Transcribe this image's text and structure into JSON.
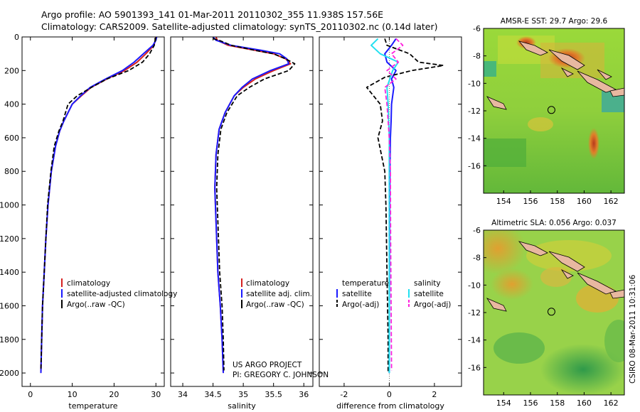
{
  "header": {
    "line1": "Argo profile: AO 5901393_141 01-Mar-2011 20110302_355 11.938S 157.56E",
    "line2": "Climatology: CARS2009. Satellite-adjusted climatology: synTS_20110302.nc (0.14d later)"
  },
  "side_stamp": "CSIRO 08-Mar-2011 10:31:06",
  "project": {
    "line1": "US ARGO PROJECT",
    "line2": "PI: GREGORY C. JOHNSON"
  },
  "colors": {
    "climatology": "#d62020",
    "satellite": "#1a1aff",
    "argo": "#000000",
    "salinity_sat": "#22e0f0",
    "salinity_argo": "#ff22dd"
  },
  "chart_data": [
    {
      "id": "temperature",
      "type": "line",
      "xlabel": "temperature",
      "ylabel": "",
      "xlim": [
        -2,
        32
      ],
      "ylim": [
        2080,
        0
      ],
      "xticks": [
        0,
        10,
        20,
        30
      ],
      "yticks": [
        0,
        200,
        400,
        600,
        800,
        1000,
        1200,
        1400,
        1600,
        1800,
        2000
      ],
      "legend": [
        "climatology",
        "satellite-adjusted climatology",
        "Argo(..raw -QC)"
      ],
      "series": [
        {
          "name": "climatology",
          "style": "solid",
          "color": "#d62020",
          "x": [
            30.0,
            29.9,
            29.5,
            27.6,
            25.5,
            22.5,
            18.3,
            14.5,
            12.2,
            10.0,
            8.0,
            7.0,
            6.0,
            5.0,
            4.2,
            3.7,
            3.3,
            2.9,
            2.7,
            2.5
          ],
          "y": [
            0,
            20,
            50,
            100,
            150,
            200,
            250,
            300,
            350,
            400,
            500,
            560,
            650,
            800,
            1000,
            1200,
            1400,
            1600,
            1800,
            2000
          ]
        },
        {
          "name": "satellite-adjusted climatology",
          "style": "solid",
          "color": "#1a1aff",
          "x": [
            30.2,
            30.0,
            29.3,
            27.0,
            24.8,
            22.0,
            18.0,
            14.3,
            12.0,
            10.0,
            8.0,
            7.0,
            6.0,
            5.0,
            4.2,
            3.7,
            3.3,
            2.9,
            2.7,
            2.5
          ],
          "y": [
            0,
            20,
            50,
            100,
            150,
            200,
            250,
            300,
            350,
            400,
            500,
            560,
            650,
            800,
            1000,
            1200,
            1400,
            1600,
            1800,
            2000
          ]
        },
        {
          "name": "Argo(..raw -QC)",
          "style": "dashed",
          "color": "#000000",
          "x": [
            29.8,
            29.8,
            29.6,
            28.5,
            26.8,
            23.5,
            18.3,
            14.6,
            11.2,
            9.0,
            7.8,
            6.8,
            5.7,
            4.9,
            4.1,
            3.7,
            3.3,
            2.9,
            2.7,
            2.5
          ],
          "y": [
            5,
            20,
            50,
            100,
            150,
            200,
            250,
            300,
            350,
            400,
            500,
            560,
            650,
            800,
            1000,
            1200,
            1400,
            1600,
            1800,
            1985
          ]
        }
      ]
    },
    {
      "id": "salinity",
      "type": "line",
      "xlabel": "salinity",
      "ylabel": "",
      "xlim": [
        33.8,
        36.15
      ],
      "ylim": [
        2080,
        0
      ],
      "xticks": [
        34,
        34.5,
        35,
        35.5,
        36
      ],
      "yticks": [
        0,
        200,
        400,
        600,
        800,
        1000,
        1200,
        1400,
        1600,
        1800,
        2000
      ],
      "legend": [
        "climatology",
        "satellite adj. clim.",
        "Argo(..raw -QC)"
      ],
      "series": [
        {
          "name": "climatology",
          "style": "solid",
          "color": "#d62020",
          "x": [
            34.55,
            34.57,
            34.75,
            35.2,
            35.5,
            35.7,
            35.78,
            35.5,
            35.2,
            35.0,
            34.85,
            34.7,
            34.6,
            34.55,
            34.53,
            34.55,
            34.58,
            34.62,
            34.65,
            34.67
          ],
          "y": [
            0,
            20,
            50,
            80,
            100,
            130,
            160,
            200,
            250,
            300,
            350,
            450,
            550,
            700,
            900,
            1100,
            1400,
            1600,
            1800,
            2000
          ]
        },
        {
          "name": "satellite adj. clim.",
          "style": "solid",
          "color": "#1a1aff",
          "x": [
            34.5,
            34.55,
            34.8,
            35.3,
            35.6,
            35.72,
            35.75,
            35.45,
            35.15,
            34.98,
            34.85,
            34.7,
            34.6,
            34.55,
            34.53,
            34.55,
            34.58,
            34.62,
            34.65,
            34.67
          ],
          "y": [
            0,
            20,
            50,
            80,
            100,
            130,
            160,
            200,
            250,
            300,
            350,
            450,
            550,
            700,
            900,
            1100,
            1400,
            1600,
            1800,
            2000
          ]
        },
        {
          "name": "Argo(..raw -QC)",
          "style": "dashed",
          "color": "#000000",
          "x": [
            34.5,
            34.6,
            34.8,
            35.2,
            35.5,
            35.7,
            35.85,
            35.75,
            35.35,
            35.1,
            34.9,
            34.73,
            34.63,
            34.58,
            34.56,
            34.58,
            34.61,
            34.65,
            34.67,
            34.68
          ],
          "y": [
            10,
            20,
            50,
            80,
            100,
            130,
            160,
            200,
            250,
            300,
            350,
            450,
            550,
            700,
            900,
            1100,
            1400,
            1600,
            1800,
            1985
          ]
        }
      ]
    },
    {
      "id": "difference",
      "type": "line",
      "xlabel": "difference from climatology",
      "ylabel": "",
      "xlim": [
        -3.1,
        3.2
      ],
      "ylim": [
        2080,
        0
      ],
      "xticks": [
        -2,
        0,
        2
      ],
      "yticks": [
        0,
        200,
        400,
        600,
        800,
        1000,
        1200,
        1400,
        1600,
        1800,
        2000
      ],
      "legend": [
        "temperature",
        "satellite",
        "Argo(-adj)",
        "salinity",
        "satellite",
        "Argo(-adj)"
      ],
      "series": [
        {
          "name": "temperature satellite",
          "style": "solid",
          "color": "#1a1aff",
          "x": [
            0.3,
            0.1,
            -0.2,
            -0.1,
            0.3,
            0.1,
            0.2,
            0.15,
            0.1,
            0.08,
            0.05,
            0.03,
            0.02,
            0.01,
            0.0,
            0.0
          ],
          "y": [
            10,
            50,
            100,
            150,
            200,
            250,
            300,
            350,
            400,
            500,
            600,
            800,
            1000,
            1400,
            1800,
            2000
          ]
        },
        {
          "name": "temperature Argo(-adj)",
          "style": "dashed",
          "color": "#000000",
          "x": [
            -0.2,
            -0.1,
            0.9,
            1.3,
            2.4,
            1.0,
            -0.2,
            -1.0,
            -0.4,
            -0.3,
            -0.5,
            -0.2,
            -0.15,
            -0.1,
            -0.05,
            -0.05
          ],
          "y": [
            10,
            50,
            100,
            150,
            170,
            200,
            240,
            300,
            400,
            500,
            600,
            800,
            1000,
            1400,
            1800,
            2000
          ]
        },
        {
          "name": "salinity satellite",
          "style": "solid",
          "color": "#22e0f0",
          "x": [
            -0.5,
            -0.8,
            -0.4,
            0.4,
            0.15,
            -0.1,
            -0.05,
            0.0,
            0.0,
            0.0,
            0.0,
            0.0
          ],
          "y": [
            10,
            50,
            100,
            150,
            200,
            300,
            400,
            600,
            800,
            1200,
            1600,
            2000
          ]
        },
        {
          "name": "salinity Argo(-adj)",
          "style": "dashed",
          "color": "#ff22dd",
          "x": [
            0.3,
            0.6,
            0.1,
            0.4,
            -0.1,
            0.3,
            -0.2,
            -0.1,
            0.0,
            0.05,
            0.06,
            0.08,
            0.1
          ],
          "y": [
            10,
            50,
            100,
            150,
            200,
            250,
            300,
            400,
            600,
            800,
            1200,
            1600,
            1985
          ]
        }
      ]
    },
    {
      "id": "sst_map",
      "type": "heatmap",
      "title": "AMSR-E SST: 29.7 Argo: 29.6",
      "xlim": [
        152.5,
        163
      ],
      "ylim": [
        -18,
        -6
      ],
      "xticks": [
        154,
        156,
        158,
        160,
        162
      ],
      "yticks": [
        -6,
        -8,
        -10,
        -12,
        -14,
        -16
      ],
      "argo_position": {
        "lon": 157.56,
        "lat": -11.938
      }
    },
    {
      "id": "sla_map",
      "type": "heatmap",
      "title": "Altimetric SLA: 0.056 Argo: 0.037",
      "xlim": [
        152.5,
        163
      ],
      "ylim": [
        -18,
        -6
      ],
      "xticks": [
        154,
        156,
        158,
        160,
        162
      ],
      "yticks": [
        -6,
        -8,
        -10,
        -12,
        -14,
        -16
      ],
      "argo_position": {
        "lon": 157.56,
        "lat": -11.938
      }
    }
  ]
}
